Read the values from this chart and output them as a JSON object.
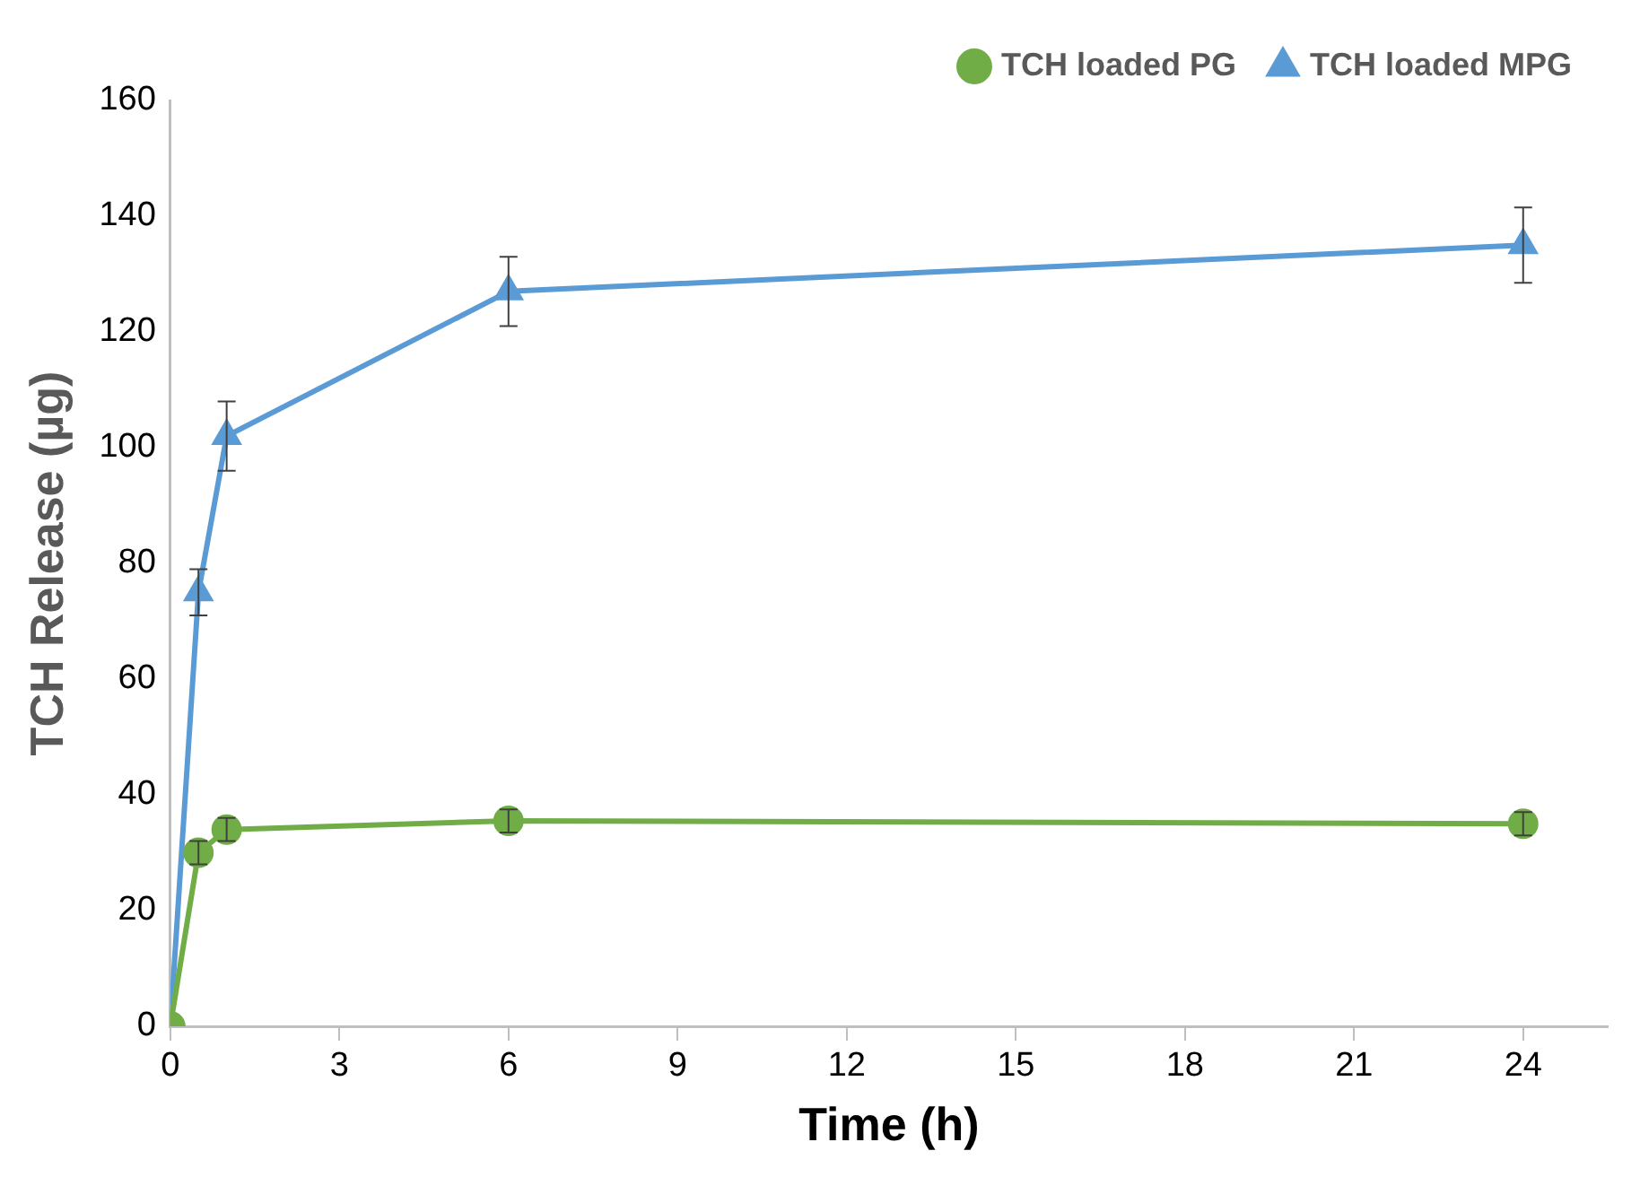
{
  "chart_data": {
    "type": "line",
    "xlabel": "Time (h)",
    "ylabel": "TCH Release (µg)",
    "x": [
      0,
      0.5,
      1,
      6,
      24
    ],
    "series": [
      {
        "name": "TCH loaded PG",
        "color": "#70ad47",
        "marker": "circle",
        "values": [
          0,
          30,
          34,
          35.5,
          35
        ],
        "errors": [
          null,
          2,
          2,
          2,
          2
        ]
      },
      {
        "name": "TCH loaded MPG",
        "color": "#5b9bd5",
        "marker": "triangle",
        "values": [
          0,
          75,
          102,
          127,
          135
        ],
        "errors": [
          null,
          4,
          6,
          6,
          6.5
        ]
      }
    ],
    "xlim": [
      0,
      25.5
    ],
    "xticks": [
      0,
      3,
      6,
      9,
      12,
      15,
      18,
      21,
      24
    ],
    "ylim": [
      0,
      160
    ],
    "yticks": [
      0,
      20,
      40,
      60,
      80,
      100,
      120,
      140,
      160
    ],
    "grid": false,
    "legend": "top right",
    "line_style": "solid"
  }
}
